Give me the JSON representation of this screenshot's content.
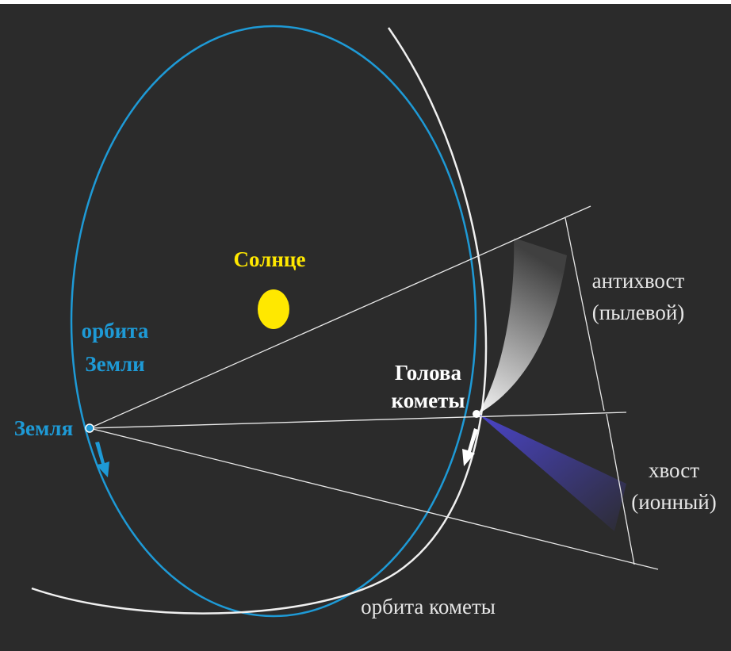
{
  "labels": {
    "sun": "Солнце",
    "earth_orbit_1": "орбита",
    "earth_orbit_2": "Земли",
    "earth": "Земля",
    "comet_head_1": "Голова",
    "comet_head_2": "кометы",
    "antitail_1": "антихвост",
    "antitail_2": "(пылевой)",
    "tail_1": "хвост",
    "tail_2": "(ионный)",
    "comet_orbit": "орбита кометы"
  }
}
